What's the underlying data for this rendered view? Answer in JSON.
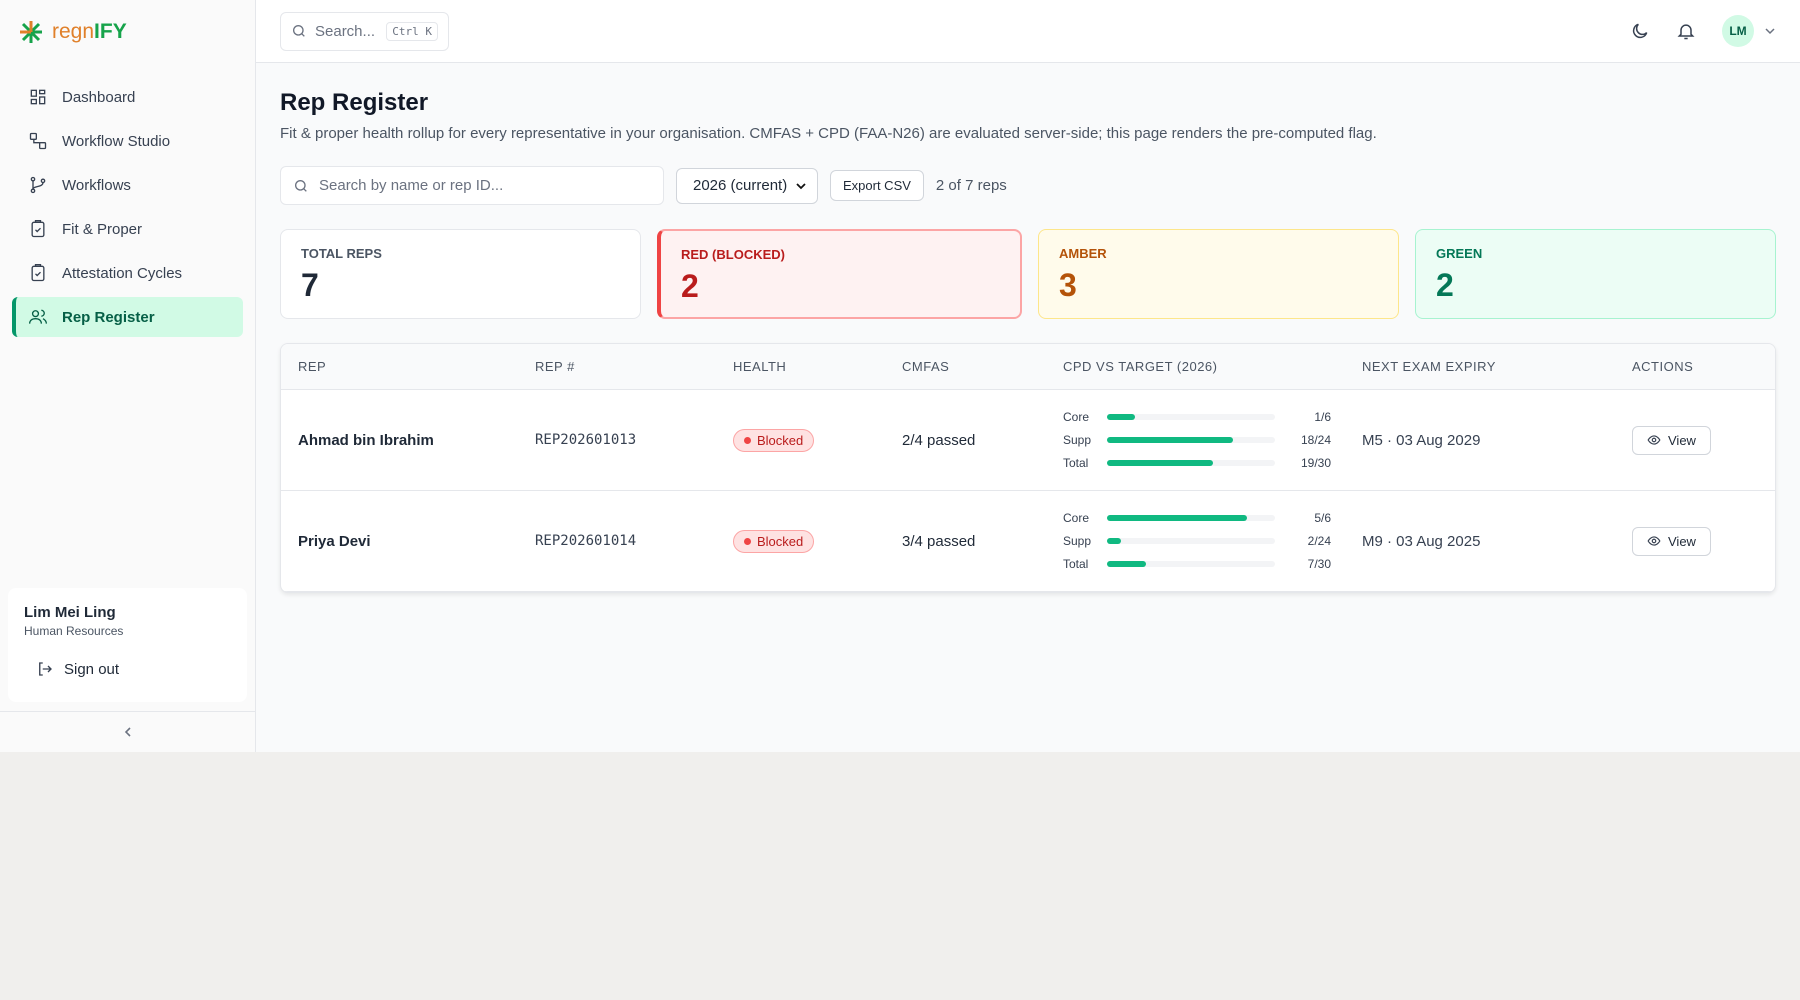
{
  "brand": {
    "prefix": "regn",
    "suffix": "IFY"
  },
  "search": {
    "placeholder": "Search...",
    "shortcut": "Ctrl K"
  },
  "user": {
    "initials": "LM",
    "name": "Lim Mei Ling",
    "role": "Human Resources"
  },
  "nav": [
    "Dashboard",
    "Workflow Studio",
    "Workflows",
    "Fit & Proper",
    "Attestation Cycles",
    "Rep Register"
  ],
  "active_nav": 5,
  "sign_out": "Sign out",
  "page": {
    "title": "Rep Register",
    "subtitle": "Fit & proper health rollup for every representative in your organisation. CMFAS + CPD (FAA-N26) are evaluated server-side; this page renders the pre-computed flag."
  },
  "toolbar": {
    "search_placeholder": "Search by name or rep ID...",
    "year": "2026 (current)",
    "export": "Export CSV",
    "count": "2 of 7 reps"
  },
  "stats": [
    {
      "label": "TOTAL REPS",
      "value": 7
    },
    {
      "label": "RED (BLOCKED)",
      "value": 2
    },
    {
      "label": "AMBER",
      "value": 3
    },
    {
      "label": "GREEN",
      "value": 2
    }
  ],
  "table": {
    "columns": [
      "REP",
      "REP #",
      "HEALTH",
      "CMFAS",
      "CPD VS TARGET (2026)",
      "NEXT EXAM EXPIRY",
      "ACTIONS"
    ],
    "rows": [
      {
        "rep": "Ahmad bin Ibrahim",
        "rep_id": "REP202601013",
        "health": "Blocked",
        "cmfas": "2/4 passed",
        "cpd": [
          {
            "name": "Core",
            "done": 1,
            "target": 6,
            "label": "1/6"
          },
          {
            "name": "Supp",
            "done": 18,
            "target": 24,
            "label": "18/24"
          },
          {
            "name": "Total",
            "done": 19,
            "target": 30,
            "label": "19/30"
          }
        ],
        "expiry": "M5 · 03 Aug 2029",
        "action": "View"
      },
      {
        "rep": "Priya Devi",
        "rep_id": "REP202601014",
        "health": "Blocked",
        "cmfas": "3/4 passed",
        "cpd": [
          {
            "name": "Core",
            "done": 5,
            "target": 6,
            "label": "5/6"
          },
          {
            "name": "Supp",
            "done": 2,
            "target": 24,
            "label": "2/24"
          },
          {
            "name": "Total",
            "done": 7,
            "target": 30,
            "label": "7/30"
          }
        ],
        "expiry": "M9 · 03 Aug 2025",
        "action": "View"
      }
    ]
  }
}
